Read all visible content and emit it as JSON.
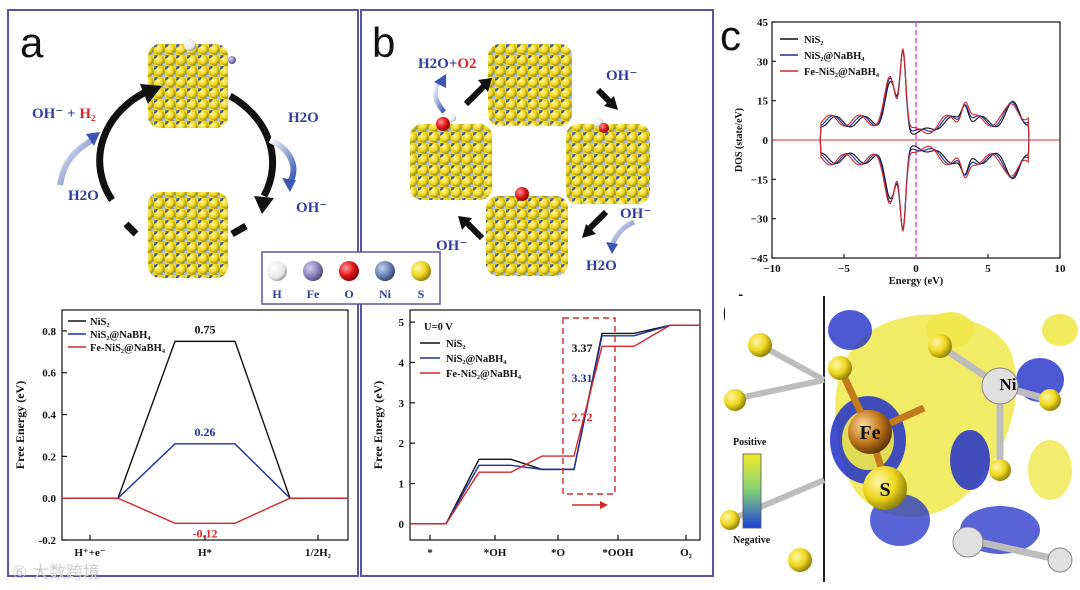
{
  "panels": {
    "a": "a",
    "b": "b",
    "c": "c",
    "d": "d"
  },
  "scheme_a": {
    "top_left": "OH⁻ + ",
    "top_left_red": "H₂",
    "right": "H2O",
    "bottom_right": "OH⁻",
    "bottom_left": "H2O"
  },
  "scheme_b": {
    "top_left": "H2O+",
    "top_left_red": "O2",
    "right_top": "OH⁻",
    "right_bottom": "OH⁻",
    "bottom_right": "H2O",
    "left": "OH⁻"
  },
  "atom_legend": [
    {
      "label": "H",
      "color": "#f2f2f2"
    },
    {
      "label": "Fe",
      "color": "#8f88c0"
    },
    {
      "label": "O",
      "color": "#e3171b"
    },
    {
      "label": "Ni",
      "color": "#6f86b8"
    },
    {
      "label": "S",
      "color": "#efd81e"
    }
  ],
  "colorbar": {
    "positive": "Positive",
    "negative": "Negative"
  },
  "panel_d_labels": {
    "fe": "Fe",
    "s": "S",
    "ni": "Ni"
  },
  "watermark": "⑥ 大数跨境",
  "colors": {
    "nis2": "#111111",
    "nabh4": "#1f2f9c",
    "fe": "#d62828",
    "purple_frame": "#5b55a0"
  },
  "chart_data": [
    {
      "type": "line",
      "panel": "a",
      "categories": [
        "H⁺+e⁻",
        "H*",
        "1/2H₂"
      ],
      "xlabel": "",
      "ylabel": "Free Energy (eV)",
      "ylim": [
        -0.2,
        0.9
      ],
      "yticks": [
        "-0.2",
        "0.0",
        "0.2",
        "0.4",
        "0.6",
        "0.8"
      ],
      "series": [
        {
          "name": "NiS₂",
          "values": [
            0,
            0.75,
            0
          ],
          "label": "0.75"
        },
        {
          "name": "NiS₂@NaBH₄",
          "values": [
            0,
            0.26,
            0
          ],
          "label": "0.26"
        },
        {
          "name": "Fe-NiS₂@NaBH₄",
          "values": [
            0,
            -0.12,
            0
          ],
          "label": "-0.12"
        }
      ],
      "legend": "top-left"
    },
    {
      "type": "line",
      "panel": "b",
      "categories": [
        "*",
        "*OH",
        "*O",
        "*OOH",
        "O₂"
      ],
      "xlabel": "",
      "ylabel": "Free Energy (eV)",
      "ylim": [
        -0.4,
        5.3
      ],
      "yticks": [
        "0",
        "1",
        "2",
        "3",
        "4",
        "5"
      ],
      "annotation": "U=0 V",
      "series": [
        {
          "name": "NiS₂",
          "values": [
            0,
            1.6,
            1.35,
            4.72,
            4.92
          ],
          "label": "3.37"
        },
        {
          "name": "NiS₂@NaBH₄",
          "values": [
            0,
            1.45,
            1.35,
            4.66,
            4.92
          ],
          "label": "3.31"
        },
        {
          "name": "Fe-NiS₂@NaBH₄",
          "values": [
            0,
            1.28,
            1.68,
            4.4,
            4.92
          ],
          "label": "2.72"
        }
      ],
      "legend": "top-left"
    },
    {
      "type": "line",
      "panel": "c",
      "xlabel": "Energy (eV)",
      "ylabel": "DOS (state/eV)",
      "xlim": [
        -10,
        10
      ],
      "ylim": [
        -45,
        45
      ],
      "xticks": [
        "−10",
        "−5",
        "0",
        "5",
        "10"
      ],
      "yticks": [
        "−45",
        "−30",
        "−15",
        "0",
        "15",
        "30",
        "45"
      ],
      "series": [
        {
          "name": "NiS₂"
        },
        {
          "name": "NiS₂@NaBH₄"
        },
        {
          "name": "Fe-NiS₂@NaBH₄"
        }
      ],
      "legend": "top-left"
    }
  ]
}
